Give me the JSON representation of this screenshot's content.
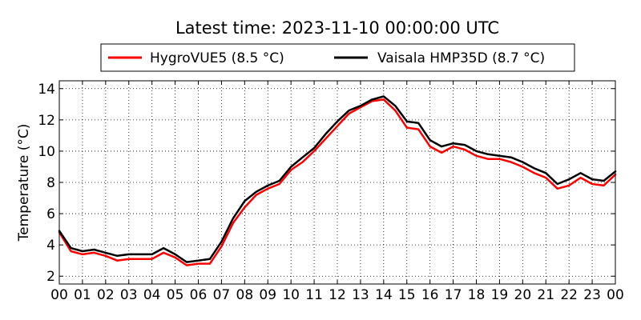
{
  "chart_data": {
    "type": "line",
    "title": "Latest time: 2023-11-10 00:00:00 UTC",
    "xlabel": "",
    "ylabel": "Temperature (°C)",
    "x_categories": [
      "00",
      "01",
      "02",
      "03",
      "04",
      "05",
      "06",
      "07",
      "08",
      "09",
      "10",
      "11",
      "12",
      "13",
      "14",
      "15",
      "16",
      "17",
      "18",
      "19",
      "20",
      "21",
      "22",
      "23",
      "00"
    ],
    "xlim": [
      0,
      24
    ],
    "ylim": [
      1.5,
      14.5
    ],
    "yticks": [
      2,
      4,
      6,
      8,
      10,
      12,
      14
    ],
    "grid": true,
    "legend_position": "top-center",
    "x_unit": "hours",
    "x": [
      0.0,
      0.5,
      1.0,
      1.5,
      2.0,
      2.5,
      3.0,
      3.5,
      4.0,
      4.5,
      5.0,
      5.5,
      6.0,
      6.5,
      7.0,
      7.5,
      8.0,
      8.5,
      9.0,
      9.5,
      10.0,
      10.5,
      11.0,
      11.5,
      12.0,
      12.5,
      13.0,
      13.5,
      14.0,
      14.5,
      15.0,
      15.5,
      16.0,
      16.5,
      17.0,
      17.5,
      18.0,
      18.5,
      19.0,
      19.5,
      20.0,
      20.5,
      21.0,
      21.5,
      22.0,
      22.5,
      23.0,
      23.5,
      24.0
    ],
    "series": [
      {
        "name": "HygroVUE5 (8.5 °C)",
        "color": "#ff0000",
        "values": [
          4.8,
          3.6,
          3.4,
          3.5,
          3.3,
          3.0,
          3.1,
          3.1,
          3.1,
          3.5,
          3.2,
          2.7,
          2.8,
          2.8,
          3.9,
          5.4,
          6.4,
          7.2,
          7.6,
          7.9,
          8.8,
          9.3,
          10.0,
          10.8,
          11.6,
          12.4,
          12.8,
          13.2,
          13.3,
          12.6,
          11.5,
          11.4,
          10.3,
          9.9,
          10.3,
          10.1,
          9.7,
          9.5,
          9.5,
          9.3,
          9.0,
          8.6,
          8.3,
          7.6,
          7.8,
          8.3,
          7.9,
          7.8,
          8.5
        ]
      },
      {
        "name": "Vaisala HMP35D (8.7 °C)",
        "color": "#000000",
        "values": [
          4.9,
          3.8,
          3.6,
          3.7,
          3.5,
          3.3,
          3.4,
          3.4,
          3.4,
          3.8,
          3.4,
          2.9,
          3.0,
          3.1,
          4.2,
          5.7,
          6.8,
          7.4,
          7.8,
          8.1,
          9.0,
          9.6,
          10.2,
          11.1,
          11.9,
          12.6,
          12.9,
          13.3,
          13.5,
          12.9,
          11.9,
          11.8,
          10.7,
          10.3,
          10.5,
          10.4,
          10.0,
          9.8,
          9.7,
          9.6,
          9.3,
          8.9,
          8.6,
          7.9,
          8.2,
          8.6,
          8.2,
          8.1,
          8.7
        ]
      }
    ]
  }
}
